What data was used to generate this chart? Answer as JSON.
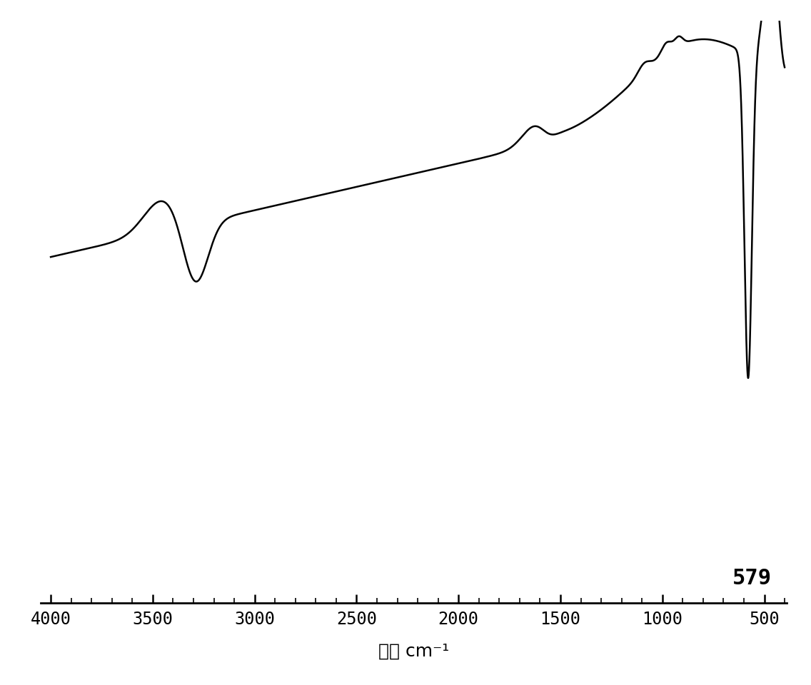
{
  "xlabel": "波数 cm⁻¹",
  "annotation": "579",
  "line_color": "#000000",
  "background_color": "#ffffff",
  "xlabel_fontsize": 18,
  "annotation_fontsize": 22,
  "tick_fontsize": 17
}
